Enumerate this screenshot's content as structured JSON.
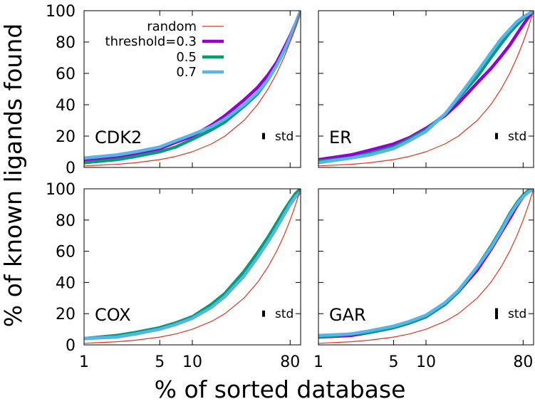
{
  "chart_data": {
    "type": "line",
    "xlabel": "% of sorted database",
    "ylabel": "% of known ligands found",
    "x_scale": "log",
    "x_ticks": [
      "1",
      "5",
      "10",
      "80"
    ],
    "x_tick_values": [
      1,
      5,
      10,
      80
    ],
    "xlim": [
      1,
      100
    ],
    "y_ticks": [
      "0",
      "20",
      "40",
      "60",
      "80",
      "100"
    ],
    "y_tick_values": [
      0,
      20,
      40,
      60,
      80,
      100
    ],
    "ylim": [
      0,
      100
    ],
    "legend": [
      {
        "name": "random",
        "color": "#e8331c"
      },
      {
        "name": "threshold=0.3",
        "color": "#9400d3"
      },
      {
        "name": "0.5",
        "color": "#009e73"
      },
      {
        "name": "0.7",
        "color": "#56b4e9"
      }
    ],
    "std_label": "std",
    "x": [
      1,
      2,
      3,
      5,
      7,
      10,
      15,
      20,
      30,
      40,
      50,
      60,
      70,
      80,
      90,
      100
    ],
    "panels": [
      {
        "name": "CDK2",
        "std_size": 4,
        "series": [
          {
            "name": "random",
            "values": [
              1,
              2,
              3,
              5,
              7,
              10,
              15,
              20,
              30,
              40,
              50,
              60,
              70,
              80,
              90,
              100
            ]
          },
          {
            "name": "threshold=0.3",
            "values": [
              4,
              6,
              8,
              12,
              16,
              20,
              27,
              33,
              43,
              51,
              59,
              67,
              76,
              84,
              92,
              100
            ]
          },
          {
            "name": "0.5",
            "values": [
              3,
              5,
              7,
              10,
              13,
              18,
              24,
              29,
              39,
              47,
              56,
              65,
              74,
              82,
              91,
              100
            ]
          },
          {
            "name": "0.7",
            "values": [
              6,
              8,
              10,
              13,
              17,
              21,
              26,
              31,
              40,
              48,
              56,
              65,
              74,
              83,
              92,
              100
            ]
          }
        ]
      },
      {
        "name": "ER",
        "std_size": 4,
        "series": [
          {
            "name": "random",
            "values": [
              1,
              2,
              3,
              5,
              7,
              10,
              15,
              20,
              30,
              40,
              50,
              60,
              70,
              80,
              90,
              100
            ]
          },
          {
            "name": "threshold=0.3",
            "values": [
              5,
              8,
              11,
              15,
              19,
              25,
              33,
              41,
              54,
              63,
              71,
              78,
              85,
              91,
              96,
              100
            ]
          },
          {
            "name": "0.5",
            "values": [
              4,
              6,
              9,
              13,
              18,
              24,
              34,
              44,
              58,
              70,
              79,
              86,
              91,
              95,
              98,
              100
            ]
          },
          {
            "name": "0.7",
            "values": [
              3,
              6,
              8,
              12,
              17,
              23,
              34,
              45,
              61,
              73,
              82,
              88,
              93,
              96,
              98,
              100
            ]
          }
        ]
      },
      {
        "name": "COX",
        "std_size": 4,
        "series": [
          {
            "name": "random",
            "values": [
              1,
              2,
              3,
              5,
              7,
              10,
              15,
              20,
              30,
              40,
              50,
              60,
              70,
              80,
              90,
              100
            ]
          },
          {
            "name": "threshold=0.3",
            "values": [
              4,
              6,
              7,
              11,
              14,
              18,
              25,
              32,
              45,
              57,
              67,
              76,
              84,
              90,
              95,
              98
            ]
          },
          {
            "name": "0.5",
            "values": [
              4,
              6,
              8,
              11,
              14,
              18,
              26,
              33,
              47,
              59,
              69,
              78,
              86,
              92,
              97,
              100
            ]
          },
          {
            "name": "0.7",
            "values": [
              4,
              5,
              7,
              10,
              13,
              17,
              24,
              31,
              44,
              56,
              66,
              75,
              83,
              90,
              95,
              98
            ]
          }
        ]
      },
      {
        "name": "GAR",
        "std_size": 7,
        "series": [
          {
            "name": "random",
            "values": [
              1,
              2,
              3,
              5,
              7,
              10,
              15,
              20,
              30,
              40,
              50,
              60,
              70,
              80,
              90,
              100
            ]
          },
          {
            "name": "threshold=0.3",
            "values": [
              5,
              6,
              8,
              11,
              14,
              18,
              26,
              34,
              48,
              61,
              72,
              81,
              89,
              95,
              99,
              100
            ]
          },
          {
            "name": "0.5",
            "values": [
              5,
              7,
              8,
              11,
              14,
              18,
              26,
              34,
              50,
              63,
              74,
              84,
              91,
              96,
              99,
              100
            ]
          },
          {
            "name": "0.7",
            "values": [
              6,
              7,
              9,
              12,
              15,
              19,
              27,
              35,
              50,
              62,
              73,
              83,
              90,
              95,
              98,
              100
            ]
          }
        ]
      }
    ]
  }
}
